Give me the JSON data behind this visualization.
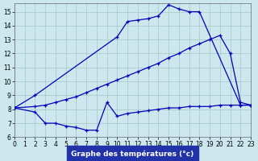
{
  "bg_color": "#cce8ee",
  "grid_color": "#aacccc",
  "line_color": "#0000bb",
  "xlabel": "Graphe des températures (°c)",
  "xlabel_bg": "#2233aa",
  "xlabel_color": "#ffffff",
  "xlim": [
    0,
    23
  ],
  "ylim": [
    6,
    15.6
  ],
  "yticks": [
    6,
    7,
    8,
    9,
    10,
    11,
    12,
    13,
    14,
    15
  ],
  "xticks": [
    0,
    1,
    2,
    3,
    4,
    5,
    6,
    7,
    8,
    9,
    10,
    11,
    12,
    13,
    14,
    15,
    16,
    17,
    18,
    19,
    20,
    21,
    22,
    23
  ],
  "curve_top_x": [
    0,
    2,
    10,
    11,
    12,
    13,
    14,
    15,
    16,
    17,
    18,
    22,
    23
  ],
  "curve_top_y": [
    8.1,
    9.0,
    13.2,
    14.3,
    14.4,
    14.5,
    14.7,
    15.5,
    15.2,
    15.0,
    15.0,
    8.3,
    8.3
  ],
  "curve_mid_x": [
    0,
    2,
    3,
    4,
    5,
    6,
    7,
    8,
    9,
    10,
    11,
    12,
    13,
    14,
    15,
    16,
    17,
    18,
    19,
    20,
    21,
    22,
    23
  ],
  "curve_mid_y": [
    8.1,
    8.2,
    8.3,
    8.5,
    8.7,
    8.9,
    9.2,
    9.5,
    9.8,
    10.1,
    10.4,
    10.7,
    11.0,
    11.3,
    11.7,
    12.0,
    12.4,
    12.7,
    13.0,
    13.3,
    12.0,
    8.5,
    8.3
  ],
  "curve_bot_x": [
    0,
    2,
    3,
    4,
    5,
    6,
    7,
    8,
    9,
    10,
    11,
    12,
    13,
    14,
    15,
    16,
    17,
    18,
    19,
    20,
    21,
    22,
    23
  ],
  "curve_bot_y": [
    8.1,
    7.8,
    7.0,
    7.0,
    6.8,
    6.7,
    6.5,
    6.5,
    8.5,
    7.5,
    7.7,
    7.8,
    7.9,
    8.0,
    8.1,
    8.1,
    8.2,
    8.2,
    8.2,
    8.3,
    8.3,
    8.3,
    8.3
  ]
}
